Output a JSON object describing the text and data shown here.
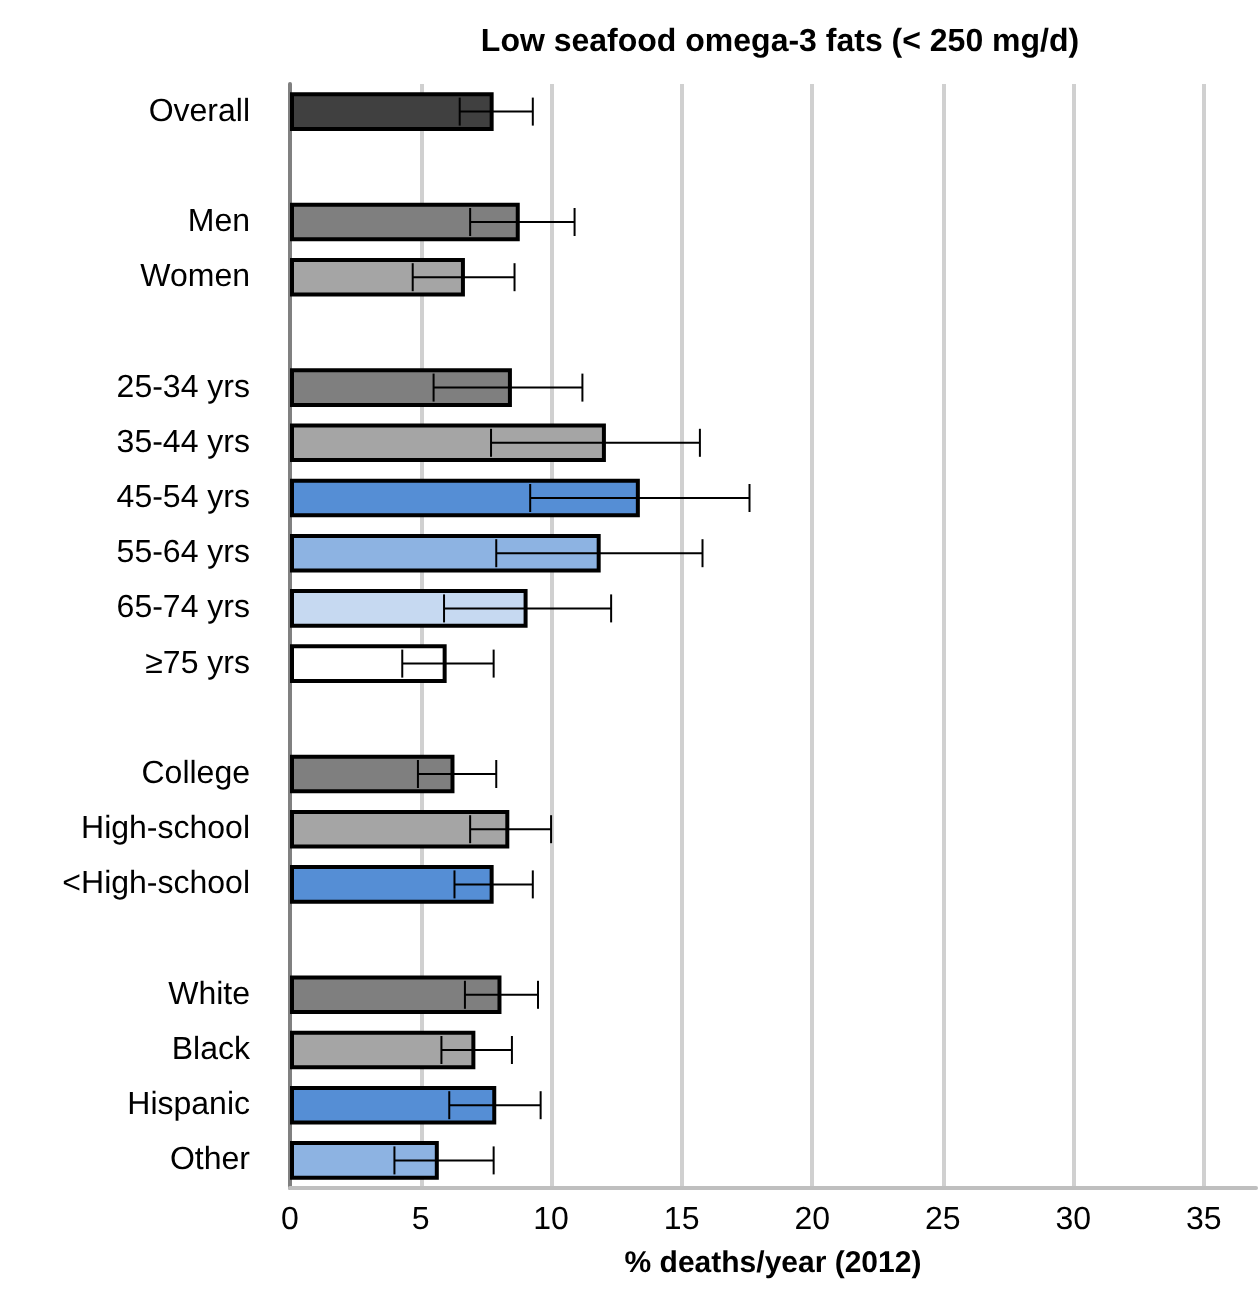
{
  "chart_data": {
    "type": "bar",
    "orientation": "horizontal",
    "title": "Low seafood omega-3 fats (< 250 mg/d)",
    "xlabel": "% deaths/year (2012)",
    "categories": [
      "Overall",
      null,
      "Men",
      "Women",
      null,
      "25-34 yrs",
      "35-44 yrs",
      "45-54 yrs",
      "55-64 yrs",
      "65-74 yrs",
      "≥75 yrs",
      null,
      "College",
      "High-school",
      "<High-school",
      null,
      "White",
      "Black",
      "Hispanic",
      "Other"
    ],
    "values": [
      7.8,
      null,
      8.8,
      6.7,
      null,
      8.5,
      12.1,
      13.4,
      11.9,
      9.1,
      6.0,
      null,
      6.3,
      8.4,
      7.8,
      null,
      8.1,
      7.1,
      7.9,
      5.7
    ],
    "errors": [
      [
        6.5,
        9.3
      ],
      null,
      [
        6.9,
        10.9
      ],
      [
        4.7,
        8.6
      ],
      null,
      [
        5.5,
        11.2
      ],
      [
        7.7,
        15.7
      ],
      [
        9.2,
        17.6
      ],
      [
        7.9,
        15.8
      ],
      [
        5.9,
        12.3
      ],
      [
        4.3,
        7.8
      ],
      null,
      [
        4.9,
        7.9
      ],
      [
        6.9,
        10.0
      ],
      [
        6.3,
        9.3
      ],
      null,
      [
        6.7,
        9.5
      ],
      [
        5.8,
        8.5
      ],
      [
        6.1,
        9.6
      ],
      [
        4.0,
        7.8
      ]
    ],
    "colors": [
      "#404040",
      null,
      "#7f7f7f",
      "#a5a5a5",
      null,
      "#7f7f7f",
      "#a5a5a5",
      "#558ed5",
      "#8db3e2",
      "#c6d9f1",
      "#ffffff",
      null,
      "#7f7f7f",
      "#a5a5a5",
      "#558ed5",
      null,
      "#7f7f7f",
      "#a5a5a5",
      "#558ed5",
      "#8db3e2"
    ],
    "xlim": [
      0,
      37
    ],
    "xticks": [
      0,
      5,
      10,
      15,
      20,
      25,
      30,
      35
    ],
    "grid": "x"
  }
}
